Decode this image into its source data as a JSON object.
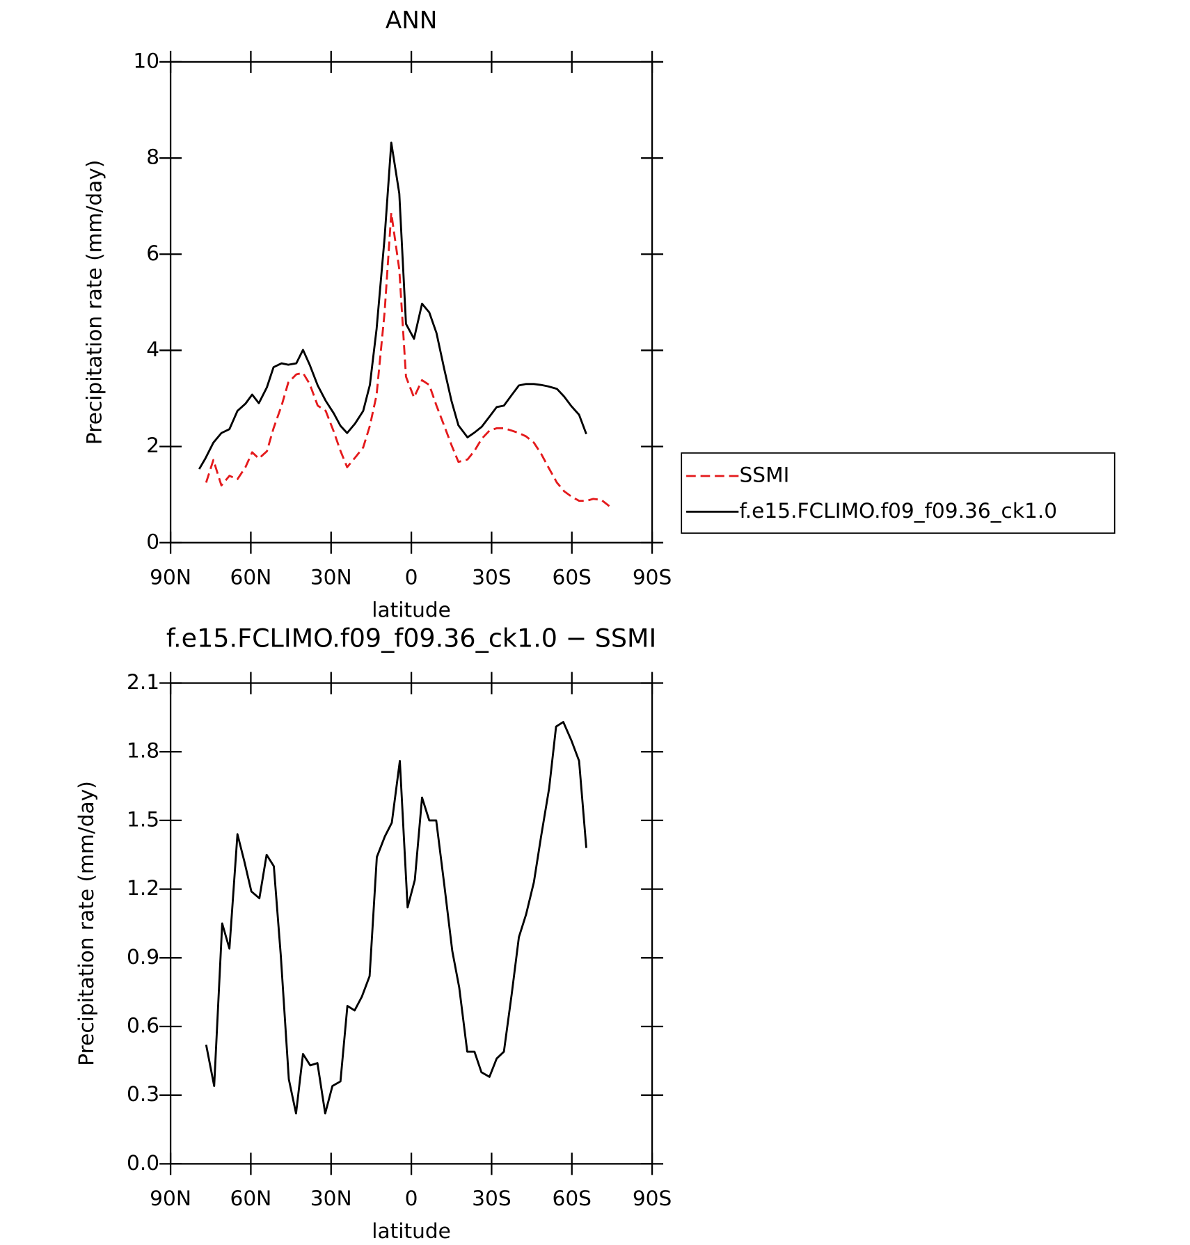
{
  "chart_data": [
    {
      "type": "line",
      "title": "ANN",
      "xlabel": "latitude",
      "ylabel": "Precipitation rate (mm/day)",
      "xlim": [
        90,
        -90
      ],
      "xticks": [
        {
          "value": 90,
          "label": "90N"
        },
        {
          "value": 60,
          "label": "60N"
        },
        {
          "value": 30,
          "label": "30N"
        },
        0,
        {
          "value": -30,
          "label": "30S"
        },
        {
          "value": -60,
          "label": "60S"
        },
        {
          "value": -90,
          "label": "90S"
        }
      ],
      "ylim": [
        0,
        10
      ],
      "yticks": [
        0,
        2,
        4,
        6,
        8,
        10
      ],
      "legend": "right",
      "series": [
        {
          "name": "SSMI",
          "color": "#e41a1c",
          "linestyle": "dashed",
          "x": [
            76.7,
            74,
            71,
            68,
            65,
            62,
            59.5,
            57,
            54,
            51.5,
            48.5,
            46,
            43,
            40.5,
            38,
            35,
            32,
            29,
            26.5,
            24,
            21,
            18,
            15.5,
            13,
            10,
            7.5,
            4.5,
            2,
            -1,
            -4,
            -6.7,
            -9.4,
            -12.3,
            -15,
            -17.6,
            -21,
            -23.6,
            -26.3,
            -29.2,
            -31.9,
            -34.6,
            -37.5,
            -40.2,
            -42.9,
            -45.8,
            -48.5,
            -51.2,
            -54.4,
            -57.1,
            -59.8,
            -62.7,
            -65.4,
            -68,
            -71,
            -74
          ],
          "values": [
            1.25,
            1.72,
            1.19,
            1.39,
            1.32,
            1.57,
            1.88,
            1.75,
            1.9,
            2.38,
            2.85,
            3.33,
            3.5,
            3.53,
            3.3,
            2.85,
            2.74,
            2.31,
            1.91,
            1.57,
            1.77,
            1.98,
            2.43,
            3.07,
            4.79,
            6.86,
            5.68,
            3.45,
            3.02,
            3.38,
            3.28,
            2.85,
            2.43,
            2.03,
            1.68,
            1.73,
            1.91,
            2.16,
            2.33,
            2.38,
            2.38,
            2.33,
            2.28,
            2.21,
            2.08,
            1.85,
            1.57,
            1.25,
            1.07,
            0.96,
            0.87,
            0.87,
            0.91,
            0.89,
            0.76
          ]
        },
        {
          "name": "f.e15.FCLIMO.f09_f09.36_ck1.0",
          "color": "#000000",
          "linestyle": "solid",
          "x": [
            79.3,
            77,
            74,
            71,
            68,
            65,
            62,
            59.5,
            57,
            54,
            51.5,
            48.5,
            46,
            43,
            40.5,
            38,
            35,
            32,
            29,
            26.5,
            24,
            21,
            18,
            15.5,
            13,
            10,
            7.5,
            4.5,
            2,
            -1,
            -4,
            -6.7,
            -9.4,
            -12.3,
            -15,
            -17.6,
            -21,
            -23.6,
            -26.3,
            -29.2,
            -31.9,
            -34.6,
            -37.5,
            -40.2,
            -42.9,
            -45.8,
            -48.5,
            -51.2,
            -54.4,
            -57.1,
            -59.8,
            -62.7,
            -65.4
          ],
          "values": [
            1.53,
            1.75,
            2.08,
            2.28,
            2.36,
            2.74,
            2.89,
            3.08,
            2.9,
            3.23,
            3.65,
            3.73,
            3.7,
            3.73,
            4.01,
            3.7,
            3.27,
            2.95,
            2.69,
            2.43,
            2.28,
            2.48,
            2.74,
            3.28,
            4.44,
            6.34,
            8.32,
            7.26,
            4.55,
            4.24,
            4.97,
            4.79,
            4.36,
            3.61,
            2.95,
            2.44,
            2.19,
            2.29,
            2.41,
            2.62,
            2.82,
            2.85,
            3.07,
            3.27,
            3.3,
            3.3,
            3.28,
            3.25,
            3.2,
            3.04,
            2.84,
            2.66,
            2.26
          ]
        }
      ]
    },
    {
      "type": "line",
      "title": "f.e15.FCLIMO.f09_f09.36_ck1.0 − SSMI",
      "xlabel": "latitude",
      "ylabel": "Precipitation rate (mm/day)",
      "xlim": [
        90,
        -90
      ],
      "xticks": [
        {
          "value": 90,
          "label": "90N"
        },
        {
          "value": 60,
          "label": "60N"
        },
        {
          "value": 30,
          "label": "30N"
        },
        0,
        {
          "value": -30,
          "label": "30S"
        },
        {
          "value": -60,
          "label": "60S"
        },
        {
          "value": -90,
          "label": "90S"
        }
      ],
      "ylim": [
        0,
        2.1
      ],
      "yticks": [
        {
          "value": 0,
          "label": "0.0"
        },
        0.3,
        0.6,
        0.9,
        1.2,
        1.5,
        1.8,
        2.1
      ],
      "series": [
        {
          "color": "#000000",
          "linestyle": "solid",
          "x": [
            76.7,
            73.7,
            70.7,
            68,
            65,
            62.4,
            59.8,
            56.8,
            54.1,
            51.4,
            48.8,
            45.8,
            43.1,
            40.5,
            37.8,
            35.1,
            32.2,
            29.5,
            26.5,
            23.9,
            21.2,
            18.5,
            15.6,
            12.9,
            9.9,
            7.3,
            4.3,
            1.4,
            -1.3,
            -4,
            -6.7,
            -9.3,
            -12.3,
            -15.3,
            -17.9,
            -20.9,
            -23.6,
            -26.2,
            -29.2,
            -31.9,
            -34.6,
            -37.5,
            -40.2,
            -42.9,
            -45.8,
            -48.5,
            -51.5,
            -54.1,
            -56.8,
            -59.8,
            -62.7,
            -65.4
          ],
          "values": [
            0.52,
            0.34,
            1.05,
            0.94,
            1.44,
            1.32,
            1.19,
            1.16,
            1.35,
            1.3,
            0.91,
            0.37,
            0.22,
            0.48,
            0.43,
            0.44,
            0.22,
            0.34,
            0.36,
            0.69,
            0.67,
            0.73,
            0.82,
            1.34,
            1.43,
            1.49,
            1.76,
            1.12,
            1.24,
            1.6,
            1.5,
            1.5,
            1.22,
            0.93,
            0.77,
            0.49,
            0.49,
            0.4,
            0.38,
            0.46,
            0.49,
            0.74,
            0.99,
            1.09,
            1.23,
            1.43,
            1.64,
            1.91,
            1.93,
            1.85,
            1.76,
            1.38
          ]
        }
      ]
    }
  ]
}
